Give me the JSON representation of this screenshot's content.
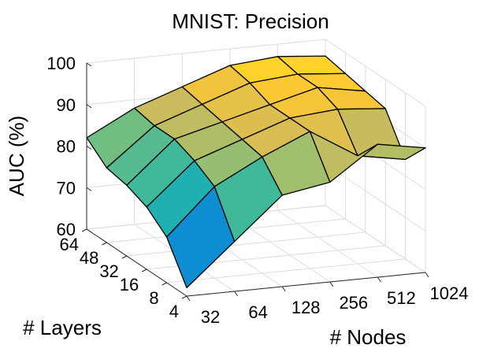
{
  "chart_data": {
    "type": "surface",
    "title": "MNIST: Precision",
    "xlabel": "# Nodes",
    "ylabel": "# Layers",
    "zlabel": "AUC (%)",
    "x": [
      "32",
      "64",
      "128",
      "256",
      "512",
      "1024"
    ],
    "y": [
      "4",
      "8",
      "16",
      "32",
      "48",
      "64"
    ],
    "zticks": [
      "60",
      "70",
      "80",
      "90",
      "100"
    ],
    "zlim": [
      60,
      100
    ],
    "z": [
      [
        62,
        72,
        82,
        84,
        92,
        90
      ],
      [
        71,
        82,
        88,
        93,
        86,
        84
      ],
      [
        75,
        85,
        89,
        93,
        94,
        93
      ],
      [
        77,
        87,
        90,
        93,
        96,
        94
      ],
      [
        78,
        87,
        91,
        95,
        96,
        95
      ],
      [
        82,
        88,
        92,
        96,
        97,
        96
      ]
    ],
    "colormap": [
      "#352a87",
      "#0f5cdd",
      "#1481d6",
      "#06a4ca",
      "#2eb7a4",
      "#87bf77",
      "#d1bb59",
      "#fec832",
      "#f9fb0e"
    ],
    "grid": true
  }
}
